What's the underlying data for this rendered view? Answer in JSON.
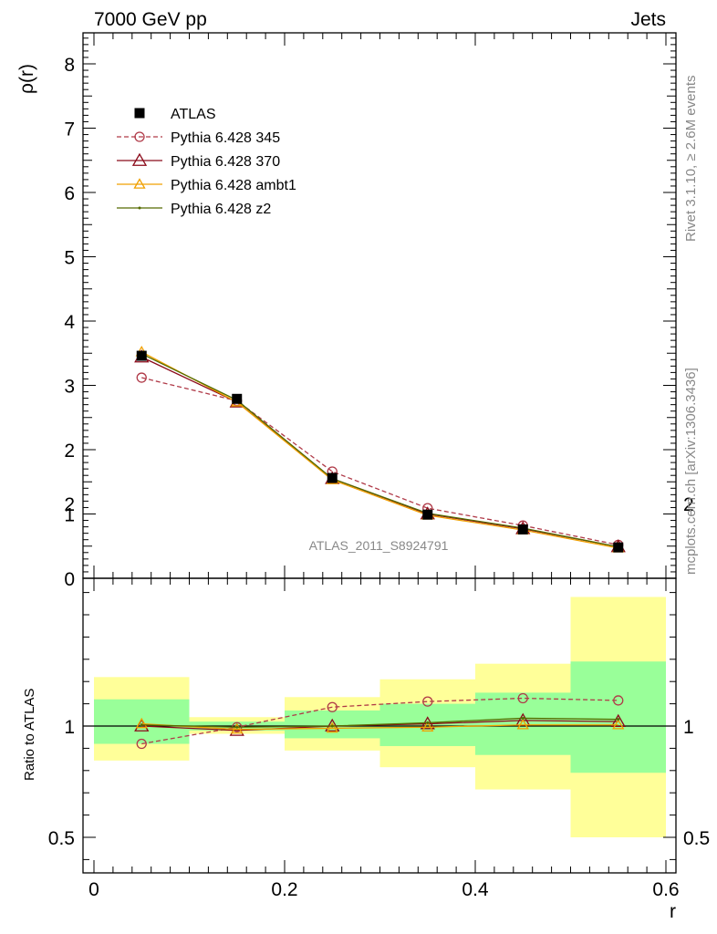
{
  "header": {
    "left": "7000 GeV pp",
    "right": "Jets"
  },
  "side_text": {
    "rivet": "Rivet 3.1.10, ≥ 2.6M events",
    "mcplots": "mcplots.cern.ch [arXiv:1306.3436]"
  },
  "watermark": "ATLAS_2011_S8924791",
  "legend": [
    {
      "label": "ATLAS",
      "color": "#000000",
      "marker": "filled-square",
      "line": "none"
    },
    {
      "label": "Pythia 6.428 345",
      "color": "#b03a48",
      "marker": "open-circle",
      "line": "dashed"
    },
    {
      "label": "Pythia 6.428 370",
      "color": "#8b0a1a",
      "marker": "open-triangle",
      "line": "solid"
    },
    {
      "label": "Pythia 6.428 ambt1",
      "color": "#f0a000",
      "marker": "open-triangle",
      "line": "solid"
    },
    {
      "label": "Pythia 6.428 z2",
      "color": "#556b00",
      "marker": "dot",
      "line": "solid"
    }
  ],
  "chart_data": [
    {
      "type": "line",
      "panel": "main",
      "ylabel": "ρ(r)",
      "xlabel": "",
      "xlim": [
        0,
        0.6
      ],
      "ylim": [
        0,
        8.4
      ],
      "x": [
        0.05,
        0.15,
        0.25,
        0.35,
        0.45,
        0.55
      ],
      "y_ticks": [
        "0",
        "1",
        "2",
        "3",
        "4",
        "5",
        "6",
        "7",
        "8"
      ],
      "series": [
        {
          "name": "ATLAS",
          "values": [
            3.46,
            2.79,
            1.56,
            0.99,
            0.76,
            0.48
          ]
        },
        {
          "name": "Pythia 6.428 345",
          "values": [
            3.12,
            2.76,
            1.66,
            1.09,
            0.82,
            0.52
          ]
        },
        {
          "name": "Pythia 6.428 370",
          "values": [
            3.44,
            2.74,
            1.55,
            1.0,
            0.77,
            0.49
          ]
        },
        {
          "name": "Pythia 6.428 ambt1",
          "values": [
            3.52,
            2.74,
            1.53,
            0.98,
            0.75,
            0.47
          ]
        },
        {
          "name": "Pythia 6.428 z2",
          "values": [
            3.49,
            2.77,
            1.55,
            1.01,
            0.78,
            0.49
          ]
        }
      ]
    },
    {
      "type": "line",
      "panel": "ratio",
      "ylabel": "Ratio to ATLAS",
      "xlabel": "r",
      "xlim": [
        0,
        0.6
      ],
      "ylim": [
        0.35,
        2.3
      ],
      "x": [
        0.05,
        0.15,
        0.25,
        0.35,
        0.45,
        0.55
      ],
      "x_ticks": [
        "0",
        "0.2",
        "0.4",
        "0.6"
      ],
      "y_ticks": [
        "0.5",
        "1",
        "2"
      ],
      "bins": [
        [
          0,
          0.1
        ],
        [
          0.1,
          0.2
        ],
        [
          0.2,
          0.3
        ],
        [
          0.3,
          0.4
        ],
        [
          0.4,
          0.5
        ],
        [
          0.5,
          0.6
        ]
      ],
      "band_yellow": [
        [
          0.845,
          1.22
        ],
        [
          0.965,
          1.04
        ],
        [
          0.89,
          1.13
        ],
        [
          0.815,
          1.21
        ],
        [
          0.715,
          1.28
        ],
        [
          0.5,
          1.58
        ]
      ],
      "band_green": [
        [
          0.92,
          1.12
        ],
        [
          0.98,
          1.02
        ],
        [
          0.945,
          1.07
        ],
        [
          0.91,
          1.1
        ],
        [
          0.87,
          1.15
        ],
        [
          0.79,
          1.29
        ]
      ],
      "series": [
        {
          "name": "Pythia 6.428 345",
          "values": [
            0.92,
            0.995,
            1.085,
            1.11,
            1.125,
            1.115
          ]
        },
        {
          "name": "Pythia 6.428 370",
          "values": [
            1.0,
            0.98,
            1.0,
            1.01,
            1.025,
            1.02
          ]
        },
        {
          "name": "Pythia 6.428 ambt1",
          "values": [
            1.01,
            0.985,
            0.99,
            0.995,
            1.005,
            1.005
          ]
        },
        {
          "name": "Pythia 6.428 z2",
          "values": [
            1.005,
            0.995,
            1.0,
            1.015,
            1.035,
            1.03
          ]
        }
      ]
    }
  ]
}
